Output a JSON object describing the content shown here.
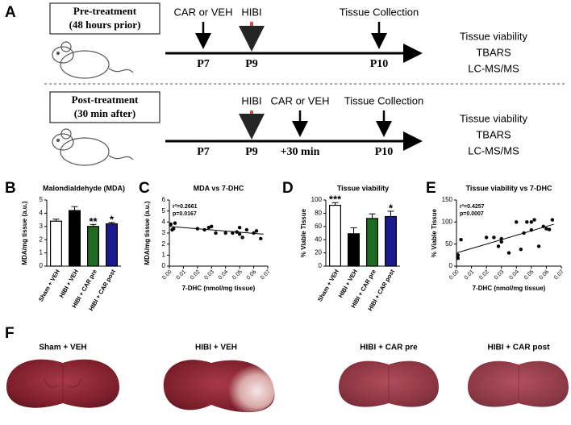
{
  "timeline": {
    "panel": "A",
    "pre": {
      "title": "Pre-treatment",
      "subtitle": "(48 hours prior)",
      "events": [
        "CAR or VEH",
        "HIBI",
        "Tissue Collection"
      ],
      "days": [
        "P7",
        "P9",
        "P10"
      ],
      "outcomes": [
        "Tissue viability",
        "TBARS",
        "LC-MS/MS"
      ]
    },
    "post": {
      "title": "Post-treatment",
      "subtitle": "(30 min after)",
      "events": [
        "HIBI",
        "CAR or VEH",
        "Tissue Collection"
      ],
      "days": [
        "P7",
        "P9",
        "+30 min",
        "P10"
      ],
      "outcomes": [
        "Tissue viability",
        "TBARS",
        "LC-MS/MS"
      ]
    }
  },
  "chart_data": [
    {
      "type": "bar",
      "panel": "B",
      "title": "Malondialdehyde (MDA)",
      "ylabel": "MDA/mg tissue (a.u.)",
      "categories": [
        "Sham + VEH",
        "HIBI + VEH",
        "HIBI + CAR pre",
        "HIBI + CAR post"
      ],
      "values": [
        3.4,
        4.2,
        3.0,
        3.2
      ],
      "errors": [
        0.15,
        0.3,
        0.15,
        0.1
      ],
      "colors": [
        "#ffffff",
        "#000000",
        "#1f6b1f",
        "#1a1a8c"
      ],
      "significance": [
        null,
        null,
        "**",
        "*"
      ],
      "ylim": [
        0,
        5
      ],
      "yticks": [
        0,
        1,
        2,
        3,
        4,
        5
      ]
    },
    {
      "type": "scatter",
      "panel": "C",
      "title": "MDA vs 7-DHC",
      "xlabel": "7-DHC (nmol/mg tissue)",
      "ylabel": "MDA/mg tissue (a.u.)",
      "annotations": [
        "r²=0.2661",
        "p=0.0167"
      ],
      "x": [
        0.001,
        0.002,
        0.003,
        0.004,
        0.02,
        0.025,
        0.028,
        0.03,
        0.033,
        0.04,
        0.045,
        0.048,
        0.05,
        0.05,
        0.052,
        0.055,
        0.06,
        0.062,
        0.065
      ],
      "values": [
        3.8,
        3.3,
        3.4,
        3.9,
        3.4,
        3.3,
        3.5,
        3.6,
        3.0,
        3.0,
        3.0,
        3.1,
        2.9,
        3.5,
        2.6,
        3.3,
        3.0,
        3.2,
        2.5
      ],
      "fit": {
        "x": [
          0,
          0.067
        ],
        "values": [
          3.6,
          2.9
        ]
      },
      "xlim": [
        0,
        0.07
      ],
      "xticks": [
        {
          "value": 0,
          "label": "0.00"
        },
        0.01,
        0.02,
        0.03,
        0.04,
        0.05,
        0.06,
        0.07
      ],
      "ylim": [
        0,
        6
      ],
      "yticks": [
        0,
        1,
        2,
        3,
        4,
        5,
        6
      ]
    },
    {
      "type": "bar",
      "panel": "D",
      "title": "Tissue viability",
      "ylabel": "% Viable Tissue",
      "categories": [
        "Sham + VEH",
        "HIBI + VEH",
        "HIBI + CAR pre",
        "HIBI + CAR post"
      ],
      "values": [
        92,
        49,
        72,
        75
      ],
      "errors": [
        4,
        9,
        7,
        8
      ],
      "colors": [
        "#ffffff",
        "#000000",
        "#1f6b1f",
        "#1a1a8c"
      ],
      "significance": [
        "***",
        null,
        null,
        "*"
      ],
      "ylim": [
        0,
        100
      ],
      "yticks": [
        0,
        20,
        40,
        60,
        80,
        100
      ]
    },
    {
      "type": "scatter",
      "panel": "E",
      "title": "Tissue viability vs 7-DHC",
      "xlabel": "7-DHC (nmol/mg tissue)",
      "ylabel": "% Viable Tissue",
      "annotations": [
        "r²=0.4257",
        "p=0.0007"
      ],
      "x": [
        0.001,
        0.001,
        0.003,
        0.02,
        0.025,
        0.028,
        0.03,
        0.03,
        0.035,
        0.04,
        0.043,
        0.045,
        0.047,
        0.05,
        0.05,
        0.052,
        0.055,
        0.058,
        0.06,
        0.062,
        0.064
      ],
      "values": [
        18,
        25,
        60,
        65,
        65,
        45,
        55,
        62,
        30,
        100,
        38,
        75,
        100,
        82,
        100,
        105,
        45,
        90,
        85,
        83,
        105
      ],
      "fit": {
        "x": [
          0,
          0.065
        ],
        "values": [
          30,
          95
        ]
      },
      "xlim": [
        0,
        0.07
      ],
      "xticks": [
        {
          "value": 0,
          "label": "0.00"
        },
        0.01,
        0.02,
        0.03,
        0.04,
        0.05,
        0.06,
        0.07
      ],
      "ylim": [
        0,
        150
      ],
      "yticks": [
        0,
        50,
        100,
        150
      ]
    }
  ],
  "images": {
    "panel": "F",
    "labels": [
      "Sham + VEH",
      "HIBI + VEH",
      "HIBI + CAR pre",
      "HIBI + CAR post"
    ]
  }
}
